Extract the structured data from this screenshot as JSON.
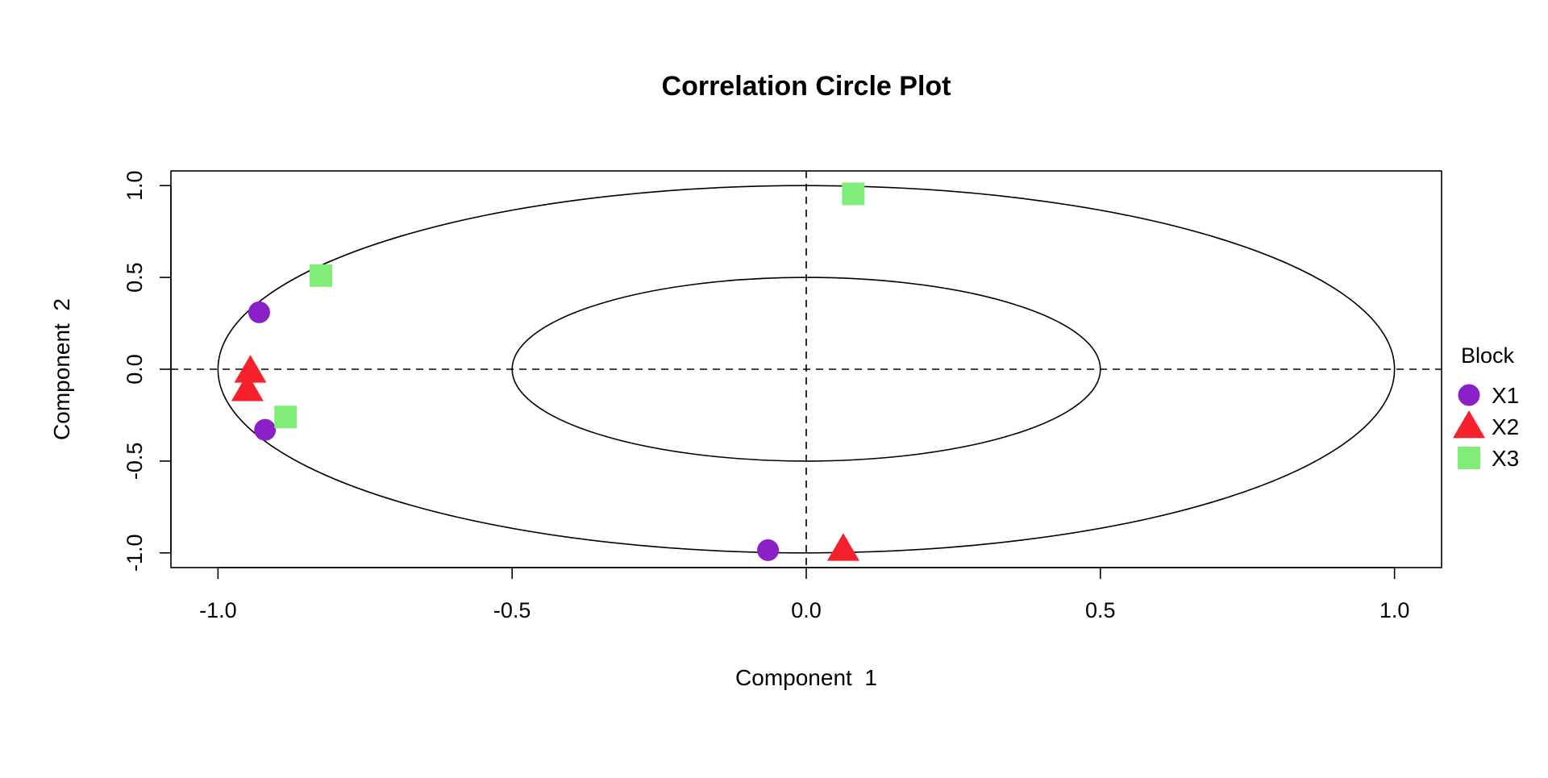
{
  "chart_data": {
    "type": "scatter",
    "title": "Correlation Circle Plot",
    "xlabel": "Component  1",
    "ylabel": "Component  2",
    "xlim": [
      -1.08,
      1.08
    ],
    "ylim": [
      -1.08,
      1.08
    ],
    "x_ticks": [
      -1.0,
      -0.5,
      0.0,
      0.5,
      1.0
    ],
    "x_tick_labels": [
      "-1.0",
      "-0.5",
      "0.0",
      "0.5",
      "1.0"
    ],
    "y_ticks": [
      -1.0,
      -0.5,
      0.0,
      0.5,
      1.0
    ],
    "y_tick_labels": [
      "-1.0",
      "-0.5",
      "0.0",
      "0.5",
      "1.0"
    ],
    "circles": [
      1.0,
      0.5
    ],
    "reference_lines": {
      "x": 0,
      "y": 0,
      "style": "dashed"
    },
    "grid": false,
    "legend": {
      "title": "Block",
      "position": "right"
    },
    "series": [
      {
        "name": "X1",
        "marker": "circle",
        "color": "#8B1FC8",
        "points": [
          {
            "x": -0.93,
            "y": 0.31
          },
          {
            "x": -0.92,
            "y": -0.33
          },
          {
            "x": -0.065,
            "y": -0.985
          }
        ]
      },
      {
        "name": "X2",
        "marker": "triangle",
        "color": "#F5222D",
        "points": [
          {
            "x": -0.945,
            "y": -0.01
          },
          {
            "x": -0.95,
            "y": -0.11
          },
          {
            "x": 0.063,
            "y": -0.98
          }
        ]
      },
      {
        "name": "X3",
        "marker": "square",
        "color": "#82EC7A",
        "points": [
          {
            "x": -0.825,
            "y": 0.51
          },
          {
            "x": -0.885,
            "y": -0.26
          },
          {
            "x": 0.08,
            "y": 0.955
          }
        ]
      }
    ]
  }
}
